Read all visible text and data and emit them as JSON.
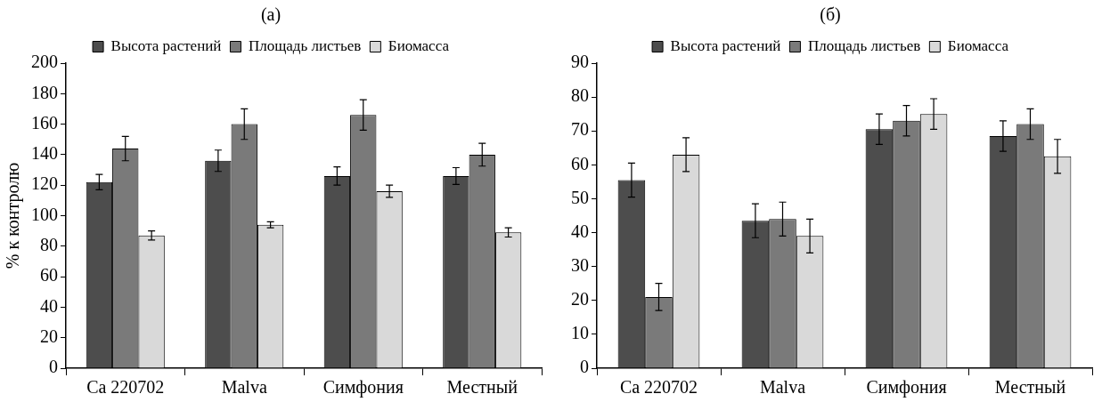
{
  "chart_data": [
    {
      "type": "bar",
      "title": "(a)",
      "ylabel": "% к контролю",
      "categories": [
        "Ca 220702",
        "Malva",
        "Симфония",
        "Местный"
      ],
      "ylim": [
        0,
        200
      ],
      "yticks": [
        0,
        20,
        40,
        60,
        80,
        100,
        120,
        140,
        160,
        180,
        200
      ],
      "grid": false,
      "legend": "top",
      "series": [
        {
          "name": "Высота растений",
          "color": "#4d4d4d",
          "values": [
            122,
            136,
            126,
            126
          ],
          "errors": [
            5,
            7,
            6,
            5.5
          ]
        },
        {
          "name": "Площадь листьев",
          "color": "#7a7a7a",
          "values": [
            144,
            160,
            166,
            140
          ],
          "errors": [
            8,
            10,
            10,
            7.5
          ]
        },
        {
          "name": "Биомасса",
          "color": "#d9d9d9",
          "values": [
            87,
            94,
            116,
            89
          ],
          "errors": [
            3,
            2,
            4,
            3
          ]
        }
      ]
    },
    {
      "type": "bar",
      "title": "(б)",
      "categories": [
        "Ca 220702",
        "Malva",
        "Симфония",
        "Местный"
      ],
      "ylim": [
        0,
        90
      ],
      "yticks": [
        0,
        10,
        20,
        30,
        40,
        50,
        60,
        70,
        80,
        90
      ],
      "grid": false,
      "legend": "top",
      "series": [
        {
          "name": "Высота растений",
          "color": "#4d4d4d",
          "values": [
            55.5,
            43.5,
            70.5,
            68.5
          ],
          "errors": [
            5,
            5,
            4.5,
            4.5
          ]
        },
        {
          "name": "Площадь листьев",
          "color": "#7a7a7a",
          "values": [
            21,
            44,
            73,
            72
          ],
          "errors": [
            4,
            5,
            4.5,
            4.5
          ]
        },
        {
          "name": "Биомасса",
          "color": "#d9d9d9",
          "values": [
            63,
            39,
            75,
            62.5
          ],
          "errors": [
            5,
            5,
            4.5,
            5
          ]
        }
      ]
    }
  ]
}
